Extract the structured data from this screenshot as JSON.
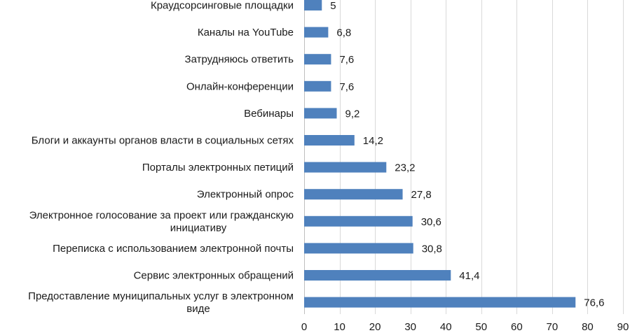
{
  "chart_data": {
    "type": "bar",
    "orientation": "horizontal",
    "title": "",
    "xlabel": "",
    "ylabel": "",
    "xlim": [
      0,
      90
    ],
    "x_ticks": [
      0,
      10,
      20,
      30,
      40,
      50,
      60,
      70,
      80,
      90
    ],
    "grid": "vertical",
    "bar_color": "#4f81bd",
    "categories": [
      [
        "Краудсорсинговые площадки"
      ],
      [
        "Каналы на YouTube"
      ],
      [
        "Затрудняюсь ответить"
      ],
      [
        "Онлайн-конференции"
      ],
      [
        "Вебинары"
      ],
      [
        "Блоги и аккаунты органов власти в социальных сетях"
      ],
      [
        "Порталы электронных петиций"
      ],
      [
        "Электронный опрос"
      ],
      [
        "Электронное голосование за проект или гражданскую",
        "инициативу"
      ],
      [
        "Переписка с использованием электронной почты"
      ],
      [
        "Сервис электронных обращений"
      ],
      [
        "Предоставление муниципальных услуг в электронном",
        "виде"
      ]
    ],
    "values": [
      5,
      6.8,
      7.6,
      7.6,
      9.2,
      14.2,
      23.2,
      27.8,
      30.6,
      30.8,
      41.4,
      76.6
    ],
    "value_labels": [
      "5",
      "6,8",
      "7,6",
      "7,6",
      "9,2",
      "14,2",
      "23,2",
      "27,8",
      "30,6",
      "30,8",
      "41,4",
      "76,6"
    ]
  }
}
